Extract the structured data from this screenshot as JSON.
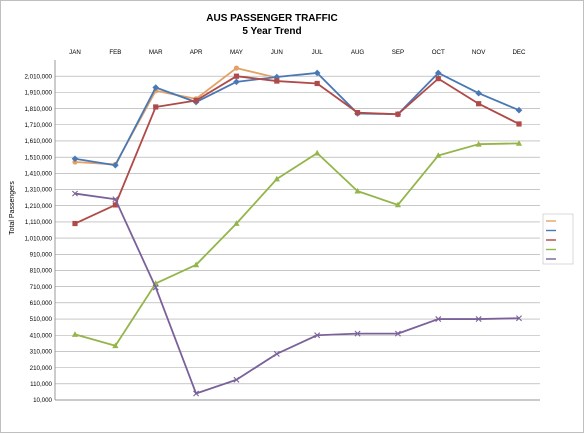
{
  "chart_data": {
    "type": "line",
    "title": "AUS PASSENGER TRAFFIC",
    "subtitle": "5 Year Trend",
    "ylabel": "Total Passengers",
    "xlabel": "",
    "categories": [
      "JAN",
      "FEB",
      "MAR",
      "APR",
      "MAY",
      "JUN",
      "JUL",
      "AUG",
      "SEP",
      "OCT",
      "NOV",
      "DEC"
    ],
    "ylim": [
      10000,
      2110000
    ],
    "yticks": [
      10000,
      110000,
      210000,
      310000,
      410000,
      510000,
      610000,
      710000,
      810000,
      910000,
      1010000,
      1110000,
      1210000,
      1310000,
      1410000,
      1510000,
      1610000,
      1710000,
      1810000,
      1910000,
      2010000
    ],
    "ytick_labels": [
      "10,000",
      "110,000",
      "210,000",
      "310,000",
      "410,000",
      "510,000",
      "610,000",
      "710,000",
      "810,000",
      "910,000",
      "1,010,000",
      "1,110,000",
      "1,210,000",
      "1,310,000",
      "1,410,000",
      "1,510,000",
      "1,610,000",
      "1,710,000",
      "1,810,000",
      "1,910,000",
      "2,010,000"
    ],
    "grid": true,
    "legend_position": "right",
    "series": [
      {
        "name": "",
        "color": "#E3A165",
        "marker": "circle",
        "values": [
          1480000,
          1465000,
          1920000,
          1870000,
          2060000,
          2000000,
          null,
          null,
          null,
          null,
          null,
          null
        ]
      },
      {
        "name": "",
        "color": "#4A78B5",
        "marker": "diamond",
        "values": [
          1500000,
          1460000,
          1940000,
          1850000,
          1975000,
          2005000,
          2030000,
          1780000,
          1775000,
          2030000,
          1905000,
          1800000
        ]
      },
      {
        "name": "",
        "color": "#B04A48",
        "marker": "square",
        "values": [
          1100000,
          1215000,
          1820000,
          1860000,
          2010000,
          1980000,
          1965000,
          1785000,
          1775000,
          1995000,
          1840000,
          1715000
        ]
      },
      {
        "name": "",
        "color": "#94B54A",
        "marker": "triangle",
        "values": [
          415000,
          345000,
          730000,
          845000,
          1100000,
          1375000,
          1535000,
          1300000,
          1215000,
          1520000,
          1590000,
          1595000
        ]
      },
      {
        "name": "",
        "color": "#7A619A",
        "marker": "x",
        "values": [
          1285000,
          1250000,
          705000,
          50000,
          135000,
          295000,
          410000,
          420000,
          420000,
          510000,
          510000,
          515000
        ]
      }
    ]
  }
}
